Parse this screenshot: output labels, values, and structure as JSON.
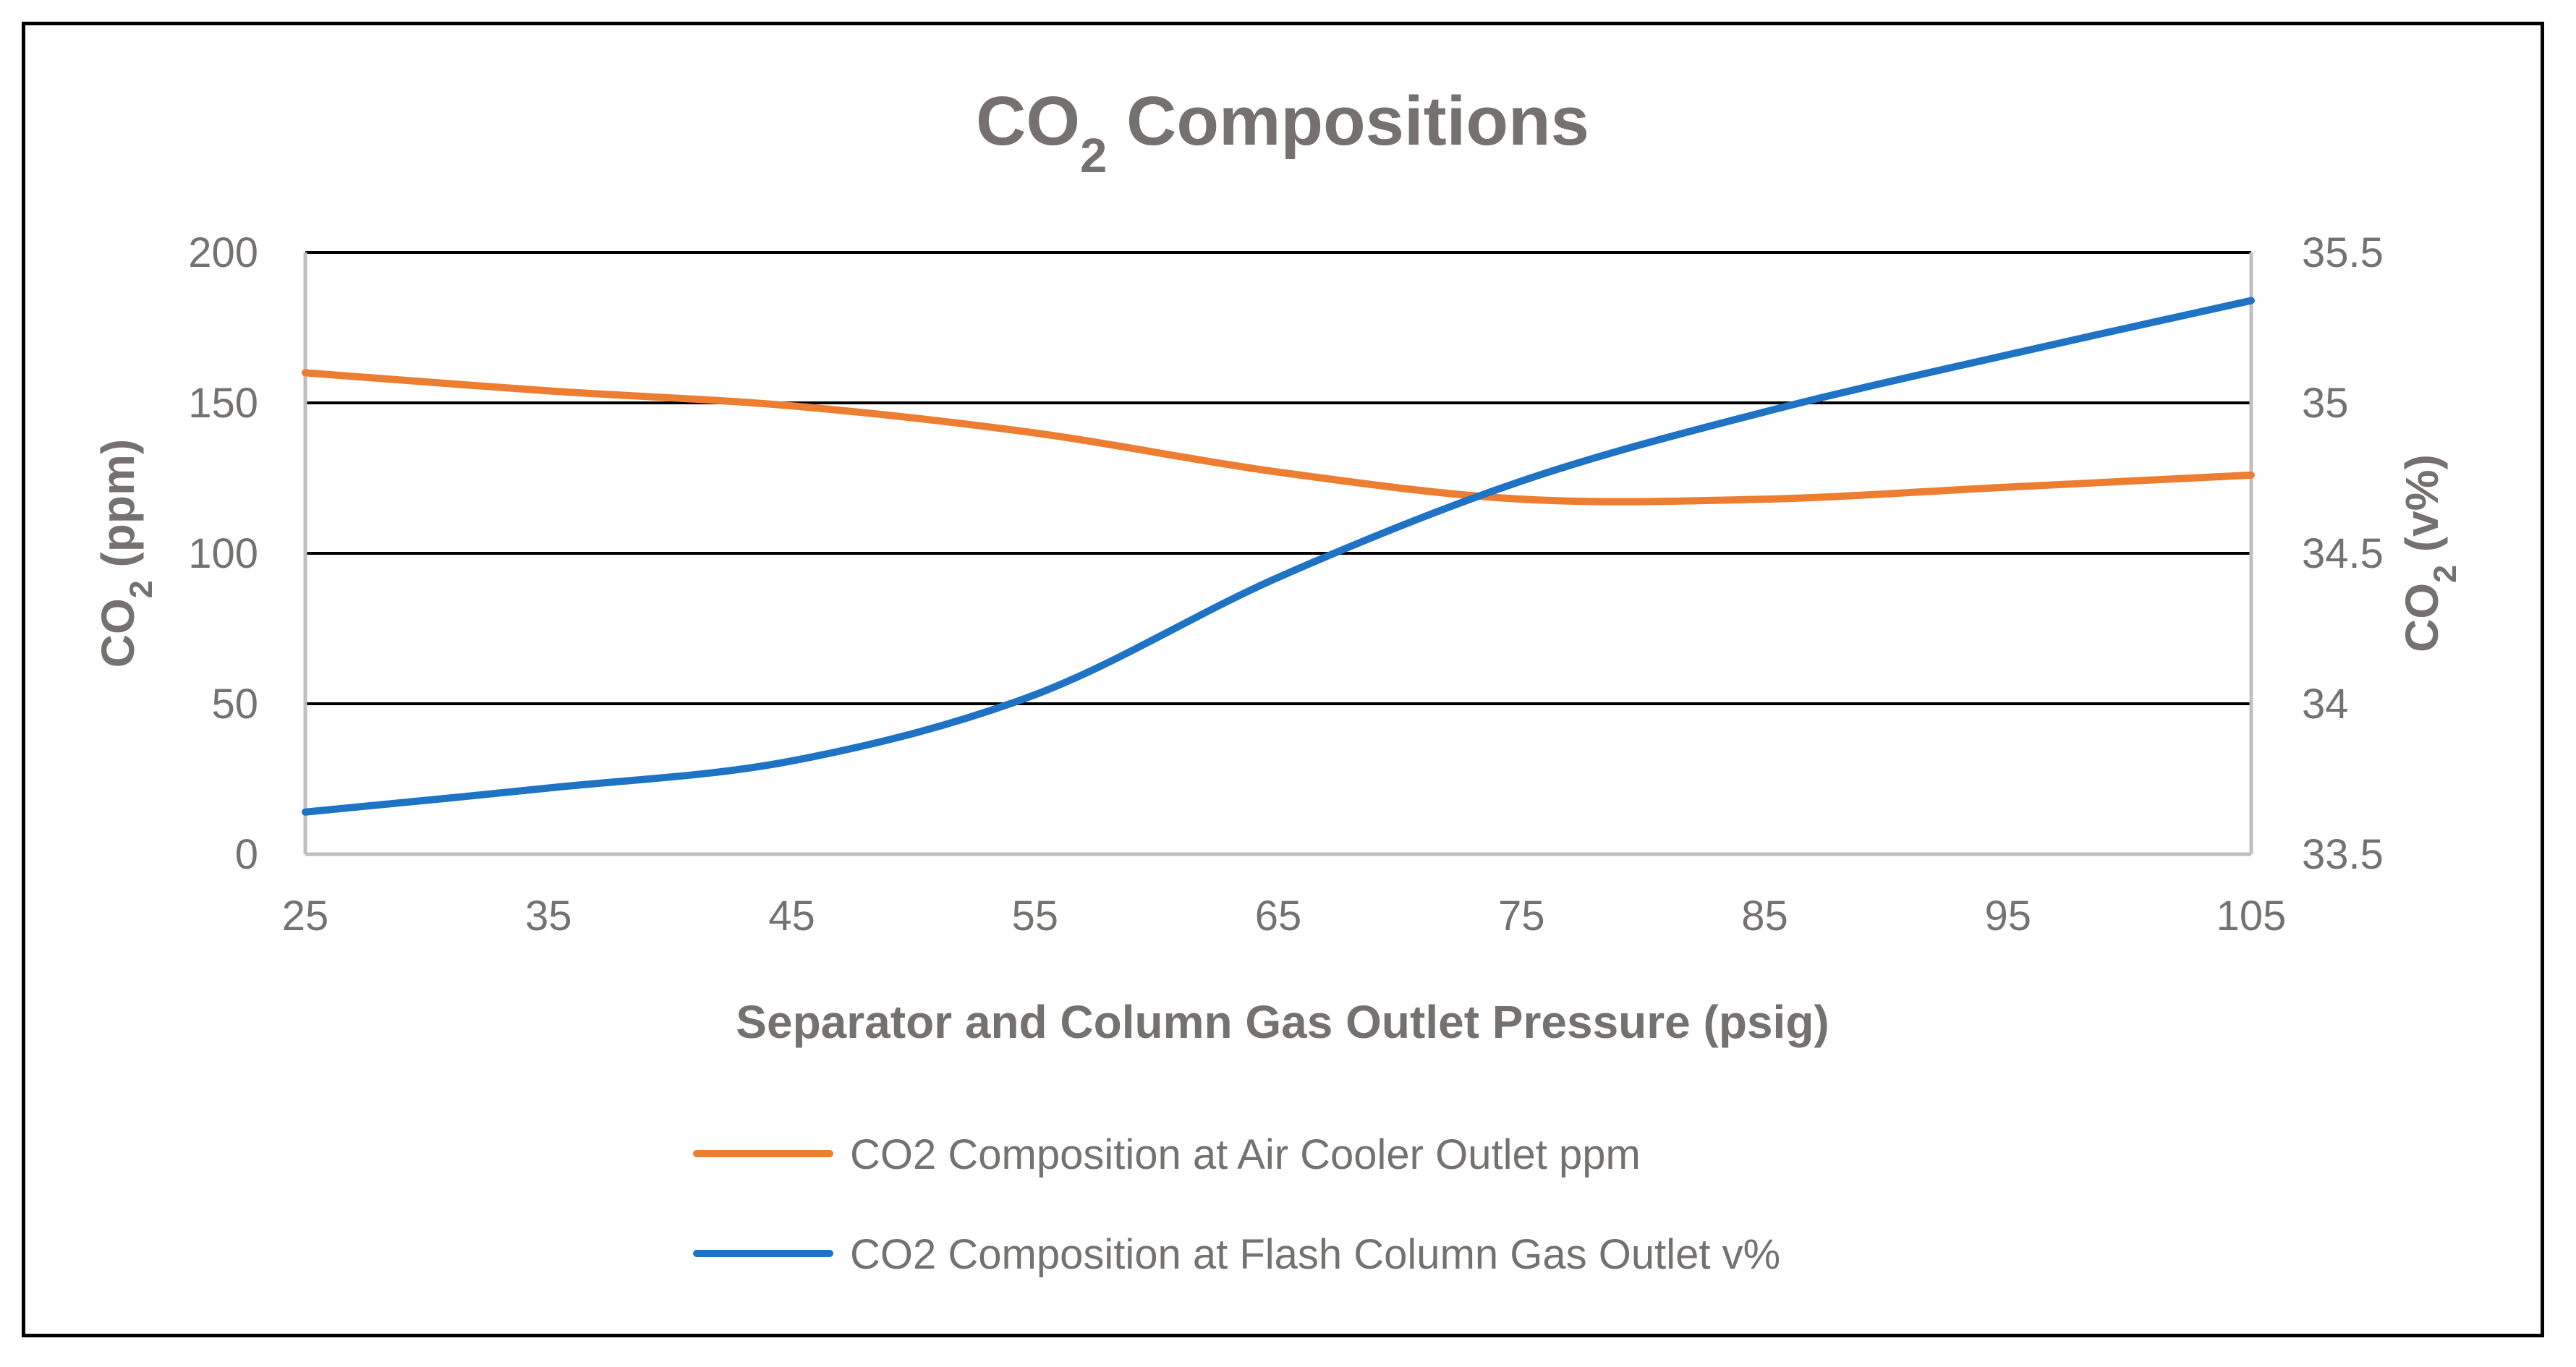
{
  "chart_data": {
    "type": "line",
    "title": {
      "main": "CO",
      "sub": "2",
      "rest": " Compositions"
    },
    "xlabel": "Separator and Column Gas Outlet Pressure (psig)",
    "ylabel_left": {
      "main": "CO",
      "sub": "2",
      "rest": " (ppm)"
    },
    "ylabel_right": {
      "main": "CO",
      "sub": "2",
      "rest": " (v%)"
    },
    "x": [
      25,
      35,
      45,
      55,
      65,
      75,
      85,
      95,
      105
    ],
    "x_ticks": [
      "25",
      "35",
      "45",
      "55",
      "65",
      "75",
      "85",
      "95",
      "105"
    ],
    "xlim": [
      25,
      105
    ],
    "ylim_left": [
      0,
      200
    ],
    "y_ticks_left": [
      "0",
      "50",
      "100",
      "150",
      "200"
    ],
    "ylim_right": [
      33.5,
      35.5
    ],
    "y_ticks_right": [
      "33.5",
      "34",
      "34.5",
      "35",
      "35.5"
    ],
    "grid": "horizontal",
    "legend_position": "bottom",
    "series": [
      {
        "name": "CO2 Composition at Air Cooler Outlet ppm",
        "axis": "left",
        "color": "#ED7D31",
        "values": [
          160,
          154,
          149,
          140,
          127,
          118,
          118,
          122,
          126
        ]
      },
      {
        "name": "CO2 Composition at Flash Column Gas Outlet v%",
        "axis": "right",
        "color": "#1F73C4",
        "values": [
          33.64,
          33.72,
          33.81,
          34.03,
          34.42,
          34.74,
          34.97,
          35.16,
          35.34
        ]
      }
    ]
  }
}
